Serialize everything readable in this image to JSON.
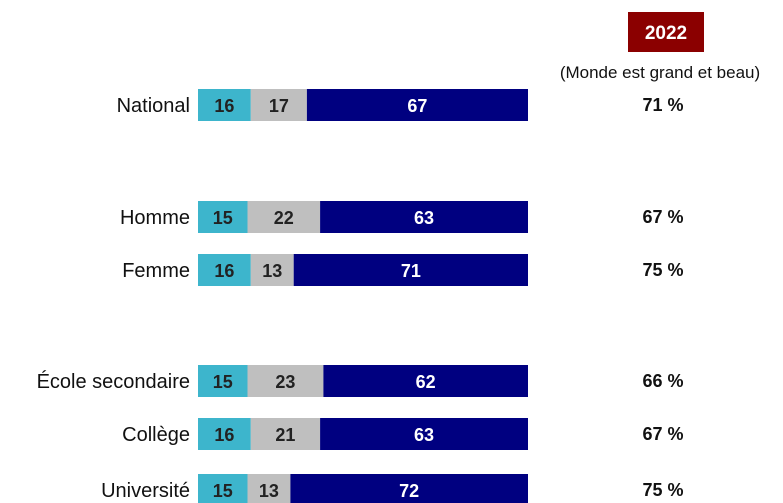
{
  "chart_data": {
    "type": "bar",
    "stacked": true,
    "orientation": "horizontal",
    "categories": [
      "National",
      "Homme",
      "Femme",
      "École secondaire",
      "Collège",
      "Université"
    ],
    "groups": [
      [
        "National"
      ],
      [
        "Homme",
        "Femme"
      ],
      [
        "École secondaire",
        "Collège",
        "Université"
      ]
    ],
    "series": [
      {
        "values": [
          16,
          15,
          16,
          15,
          16,
          15
        ],
        "color": "#3DB5CC"
      },
      {
        "values": [
          17,
          22,
          13,
          23,
          21,
          13
        ],
        "color": "#BFBFBF"
      },
      {
        "values": [
          67,
          63,
          71,
          62,
          63,
          72
        ],
        "color": "#000080"
      }
    ],
    "comparison": {
      "year_badge": "2022",
      "badge_color": "#8B0000",
      "subtitle": "(Monde est grand et beau)",
      "values": [
        "71 %",
        "67 %",
        "75 %",
        "66 %",
        "67 %",
        "75 %"
      ]
    },
    "xlim": [
      0,
      100
    ],
    "grid": false,
    "legend": false
  }
}
